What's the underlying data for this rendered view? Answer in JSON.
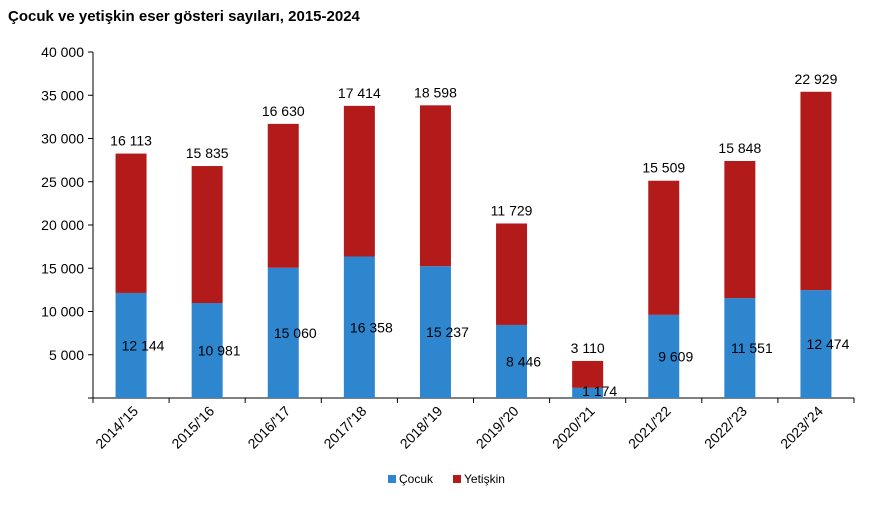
{
  "chart_data": {
    "type": "bar",
    "stacked": true,
    "title": "Çocuk ve yetişkin eser gösteri sayıları, 2015-2024",
    "categories": [
      "2014/'15",
      "2015/'16",
      "2016/'17",
      "2017/'18",
      "2018/'19",
      "2019/'20",
      "2020/'21",
      "2021/'22",
      "2022/'23",
      "2023/'24"
    ],
    "series": [
      {
        "name": "Çocuk",
        "color": "#2e86cf",
        "values": [
          12144,
          10981,
          15060,
          16358,
          15237,
          8446,
          1174,
          9609,
          11551,
          12474
        ],
        "labels": [
          "12 144",
          "10 981",
          "15 060",
          "16 358",
          "15 237",
          "8 446",
          "1 174",
          "9 609",
          "11 551",
          "12 474"
        ]
      },
      {
        "name": "Yetişkin",
        "color": "#b31b1b",
        "values": [
          16113,
          15835,
          16630,
          17414,
          18598,
          11729,
          3110,
          15509,
          15848,
          22929
        ],
        "labels": [
          "16 113",
          "15 835",
          "16 630",
          "17 414",
          "18 598",
          "11 729",
          "3 110",
          "15 509",
          "15 848",
          "22 929"
        ]
      }
    ],
    "ylim": [
      0,
      40000
    ],
    "yticks": [
      0,
      5000,
      10000,
      15000,
      20000,
      25000,
      30000,
      35000,
      40000
    ],
    "ytick_labels": [
      "",
      "5 000",
      "10 000",
      "15 000",
      "20 000",
      "25 000",
      "30 000",
      "35 000",
      "40 000"
    ],
    "xlabel": "",
    "ylabel": "",
    "grid": false,
    "legend_position": "bottom"
  }
}
